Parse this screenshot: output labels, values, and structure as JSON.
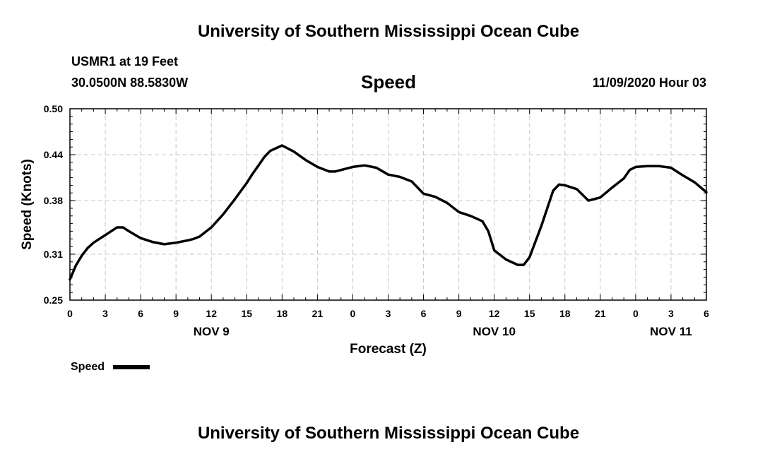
{
  "header": {
    "title": "University of Southern Mississippi Ocean Cube",
    "station": "USMR1 at 19 Feet",
    "coords": "30.0500N 88.5830W",
    "datetime": "11/09/2020 Hour 03"
  },
  "footer": {
    "title": "University of Southern Mississippi Ocean Cube"
  },
  "legend": {
    "label": "Speed",
    "color": "#000000"
  },
  "chart_data": {
    "type": "line",
    "title": "Speed",
    "xlabel": "Forecast (Z)",
    "ylabel": "Speed (Knots)",
    "ylim": [
      0.25,
      0.5
    ],
    "yticks": [
      "0.50",
      "0.44",
      "0.38",
      "0.31",
      "0.25"
    ],
    "ytick_values": [
      0.5,
      0.44,
      0.38,
      0.31,
      0.25
    ],
    "xlim": [
      0,
      54
    ],
    "xtick_hours": [
      0,
      3,
      6,
      9,
      12,
      15,
      18,
      21,
      24,
      27,
      30,
      33,
      36,
      39,
      42,
      45,
      48,
      51,
      54
    ],
    "xtick_labels": [
      "0",
      "3",
      "6",
      "9",
      "12",
      "15",
      "18",
      "21",
      "0",
      "3",
      "6",
      "9",
      "12",
      "15",
      "18",
      "21",
      "0",
      "3",
      "6"
    ],
    "date_labels": [
      {
        "hour": 12,
        "label": "NOV 9"
      },
      {
        "hour": 36,
        "label": "NOV 10"
      },
      {
        "hour": 51,
        "label": "NOV 11"
      }
    ],
    "grid": true,
    "series": [
      {
        "name": "Speed",
        "color": "#000000",
        "x": [
          0,
          0.5,
          1,
          1.5,
          2,
          2.5,
          3,
          3.5,
          4,
          4.5,
          5,
          6,
          7,
          8,
          9,
          10,
          10.5,
          11,
          12,
          13,
          14,
          15,
          15.5,
          16,
          16.5,
          17,
          18,
          19,
          20,
          21,
          22,
          22.5,
          23,
          24,
          25,
          26,
          27,
          28,
          29,
          30,
          31,
          32,
          33,
          34,
          35,
          35.5,
          36,
          37,
          38,
          38.5,
          39,
          40,
          41,
          41.5,
          42,
          43,
          44,
          45,
          46,
          47,
          47.5,
          48,
          49,
          50,
          51,
          52,
          53,
          54
        ],
        "y": [
          0.277,
          0.295,
          0.308,
          0.318,
          0.325,
          0.33,
          0.335,
          0.34,
          0.345,
          0.345,
          0.34,
          0.331,
          0.326,
          0.323,
          0.325,
          0.328,
          0.33,
          0.333,
          0.345,
          0.362,
          0.382,
          0.403,
          0.415,
          0.426,
          0.437,
          0.445,
          0.452,
          0.444,
          0.433,
          0.424,
          0.418,
          0.418,
          0.42,
          0.424,
          0.426,
          0.423,
          0.414,
          0.411,
          0.405,
          0.389,
          0.385,
          0.377,
          0.365,
          0.36,
          0.353,
          0.34,
          0.315,
          0.303,
          0.296,
          0.296,
          0.306,
          0.347,
          0.393,
          0.401,
          0.4,
          0.395,
          0.38,
          0.384,
          0.397,
          0.409,
          0.42,
          0.424,
          0.425,
          0.425,
          0.423,
          0.413,
          0.404,
          0.391
        ]
      }
    ]
  }
}
